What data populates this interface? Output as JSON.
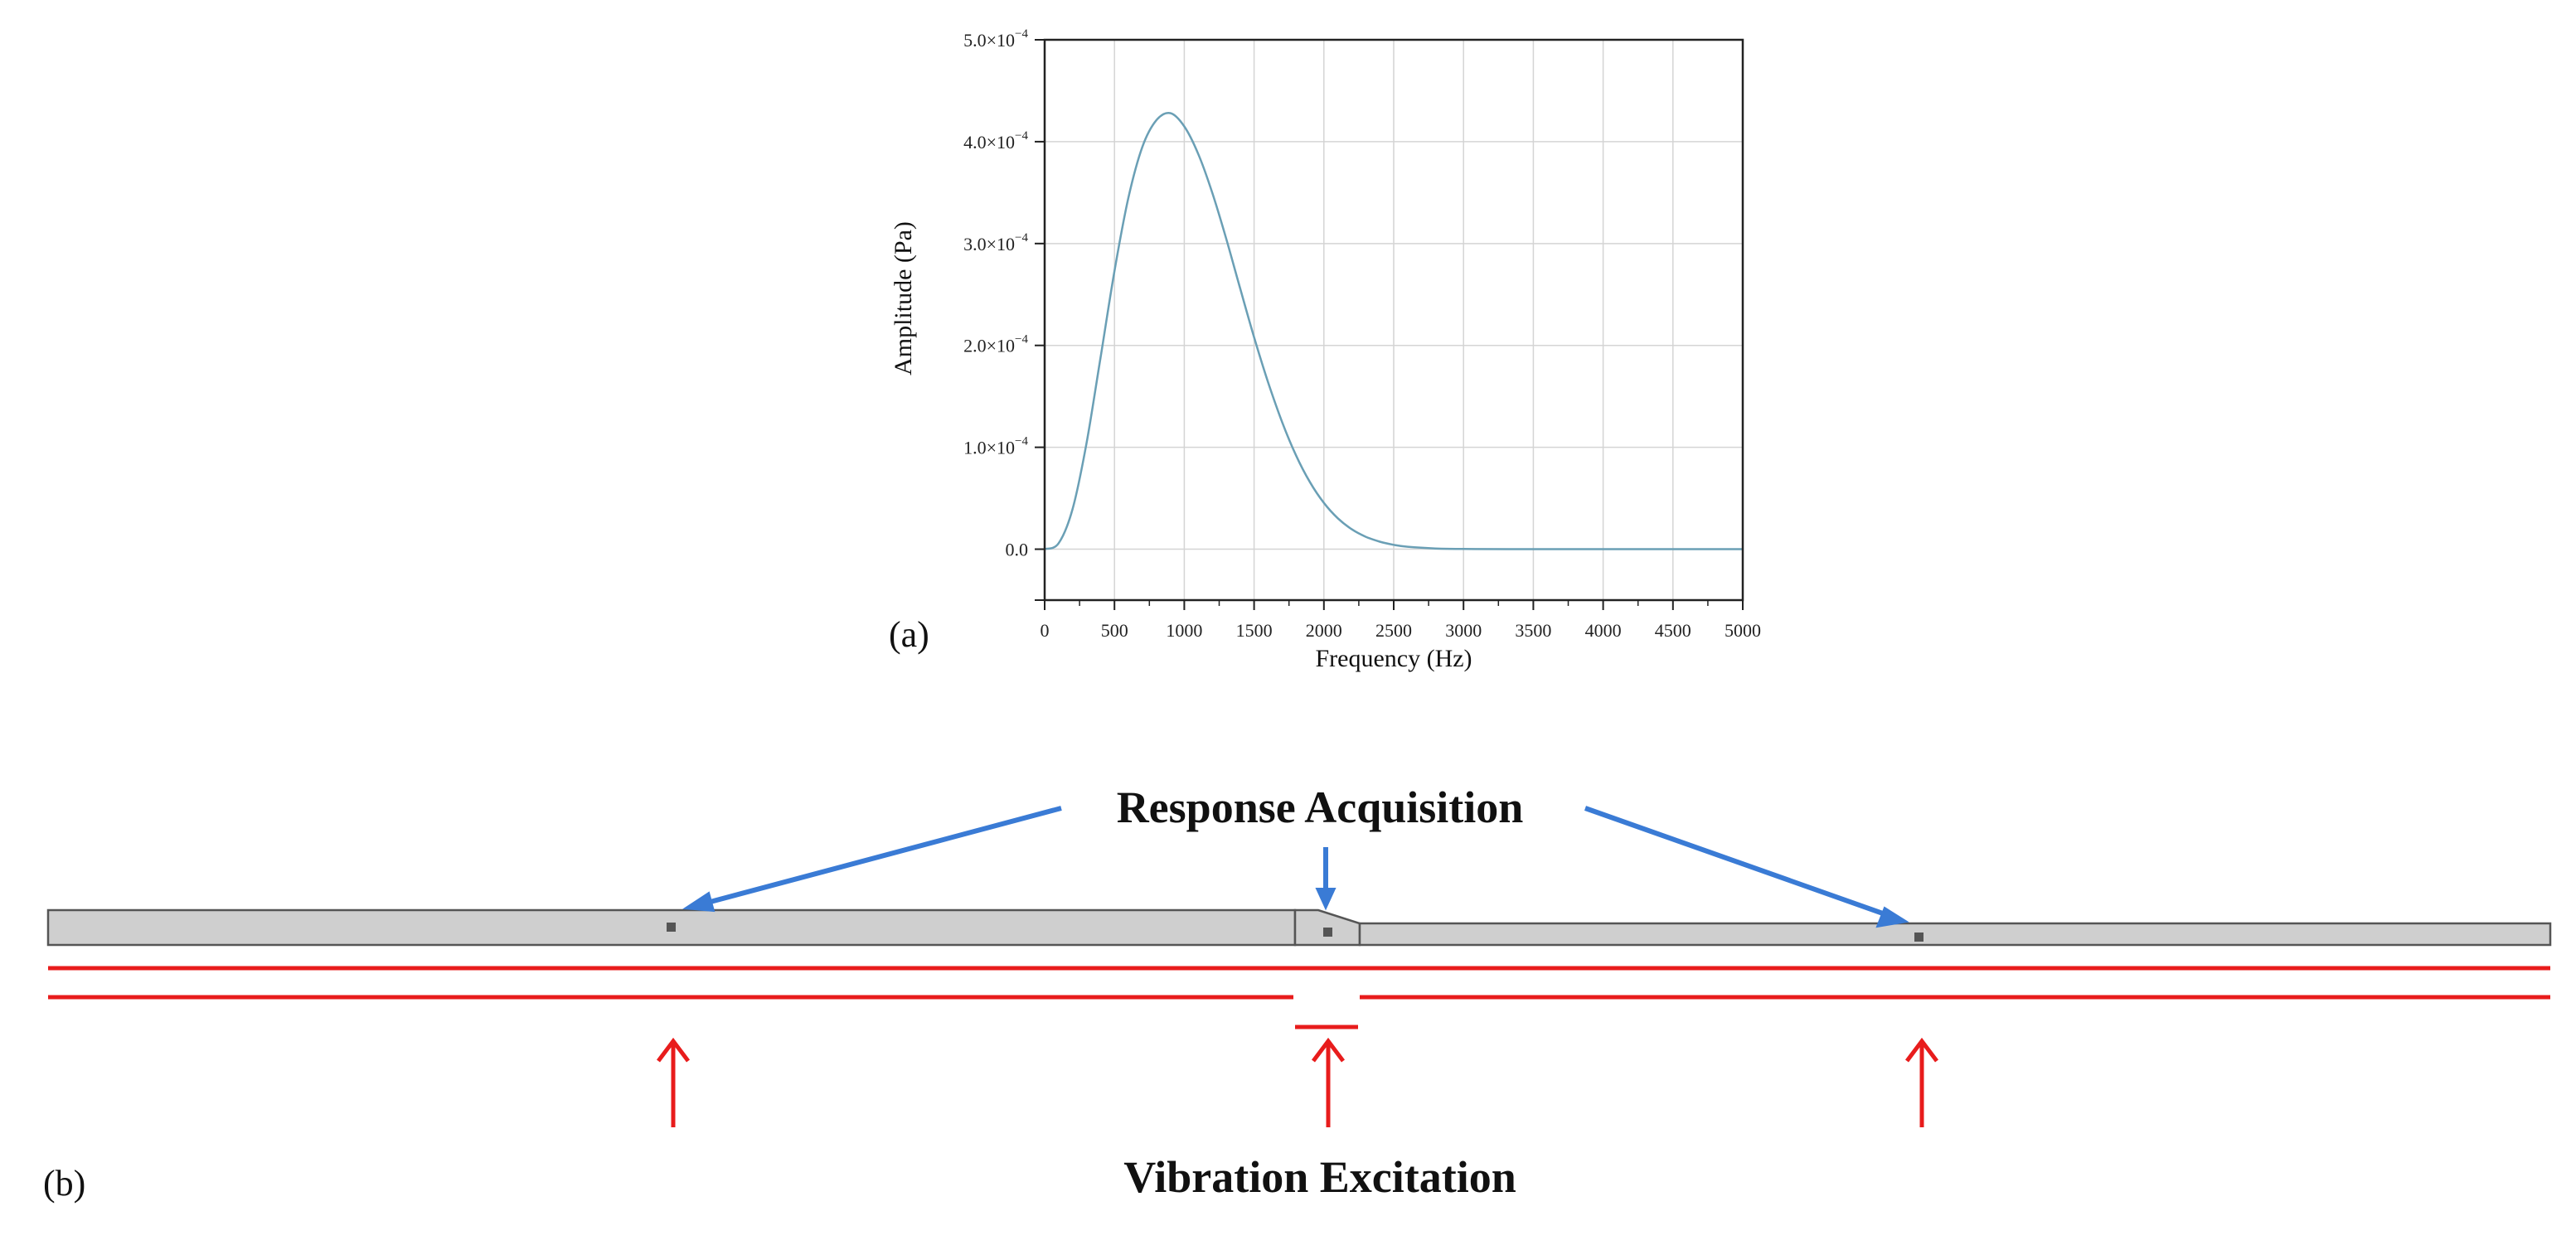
{
  "panel_a": {
    "label": "(a)"
  },
  "chart_data": {
    "type": "line",
    "title": "",
    "xlabel": "Frequency (Hz)",
    "ylabel": "Amplitude (Pa)",
    "xlim": [
      0,
      5000
    ],
    "ylim": [
      -5e-05,
      0.0005
    ],
    "grid": true,
    "x_ticks": [
      0,
      500,
      1000,
      1500,
      2000,
      2500,
      3000,
      3500,
      4000,
      4500,
      5000
    ],
    "x_tick_labels": [
      "0",
      "500",
      "1000",
      "1500",
      "2000",
      "2500",
      "3000",
      "3500",
      "4000",
      "4500",
      "5000"
    ],
    "y_ticks": [
      0,
      0.0001,
      0.0002,
      0.0003,
      0.0004,
      0.0005
    ],
    "y_tick_labels": [
      {
        "mant": "0.0",
        "exp": ""
      },
      {
        "mant": "1.0×10",
        "exp": "−4"
      },
      {
        "mant": "2.0×10",
        "exp": "−4"
      },
      {
        "mant": "3.0×10",
        "exp": "−4"
      },
      {
        "mant": "4.0×10",
        "exp": "−4"
      },
      {
        "mant": "5.0×10",
        "exp": "−4"
      }
    ],
    "series": [
      {
        "color": "#6a9fb5",
        "x": [
          0,
          100,
          200,
          300,
          400,
          500,
          600,
          700,
          800,
          900,
          1000,
          1100,
          1200,
          1300,
          1400,
          1500,
          1600,
          1700,
          1800,
          1900,
          2000,
          2100,
          2200,
          2300,
          2400,
          2500,
          2600,
          2800,
          3000,
          3500,
          4000,
          4500,
          5000
        ],
        "y": [
          0.0,
          5.8e-06,
          3.95e-05,
          0.000104,
          0.000188,
          0.000273,
          0.000345,
          0.000395,
          0.000421,
          0.000428,
          0.000415,
          0.000388,
          0.00035,
          0.000305,
          0.000256,
          0.000208,
          0.000164,
          0.000125,
          9.22e-05,
          6.58e-05,
          4.54e-05,
          3.03e-05,
          1.95e-05,
          1.22e-05,
          7.4e-06,
          4.3e-06,
          2.4e-06,
          7e-07,
          2e-07,
          0.0,
          0.0,
          0.0,
          0.0
        ]
      }
    ]
  },
  "panel_b": {
    "label": "(b)",
    "response_title": "Response Acquisition",
    "excitation_title": "Vibration Excitation",
    "colors": {
      "response_arrow": "#3a7bd5",
      "excitation": "#e81c1c",
      "pipe_fill": "#cfcfcf",
      "pipe_stroke": "#555555",
      "sensor": "#555555"
    }
  }
}
